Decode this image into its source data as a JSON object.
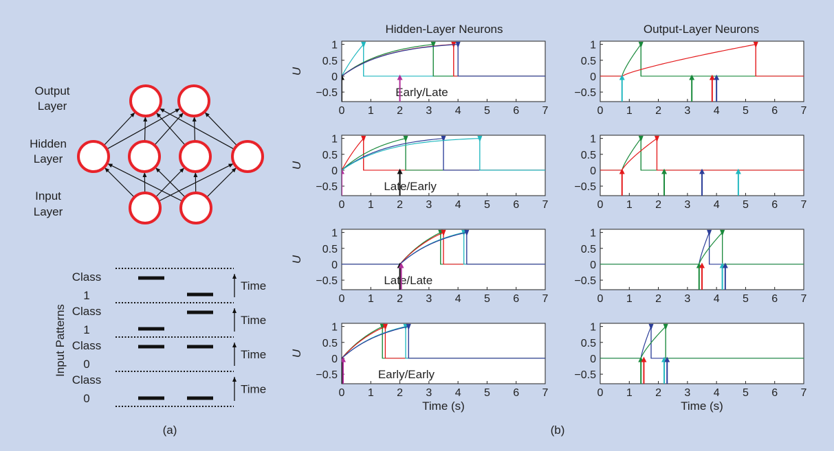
{
  "colors": {
    "background": "#cad6ec",
    "neuron_stroke": "#e8232a",
    "series": [
      "#e41a1c",
      "#1a8a3c",
      "#2c3e99",
      "#22b8c0",
      "#b0309a",
      "#111111"
    ]
  },
  "network": {
    "output_label": [
      "Output",
      "Layer"
    ],
    "hidden_label": [
      "Hidden",
      "Layer"
    ],
    "input_label": [
      "Input",
      "Layer"
    ]
  },
  "patterns": {
    "axis_label": "Input Patterns",
    "time_label": "Time",
    "rows": [
      {
        "class_label": "Class",
        "class_value": "1",
        "bars": [
          "left-early",
          "right-late"
        ]
      },
      {
        "class_label": "Class",
        "class_value": "1",
        "bars": [
          "right-early",
          "left-late"
        ]
      },
      {
        "class_label": "Class",
        "class_value": "0",
        "bars": [
          "left-early",
          "right-early"
        ]
      },
      {
        "class_label": "Class",
        "class_value": "0",
        "bars": [
          "left-late",
          "right-late"
        ]
      }
    ]
  },
  "panel_labels": {
    "a": "(a)",
    "b": "(b)"
  },
  "column_titles": {
    "hidden": "Hidden-Layer Neurons",
    "output": "Output-Layer Neurons"
  },
  "chart_data": {
    "type": "line",
    "x_label": "Time (s)",
    "y_label": "U",
    "xlim": [
      0,
      7
    ],
    "ylim": [
      -0.8,
      1.1
    ],
    "xticks": [
      0,
      1,
      2,
      3,
      4,
      5,
      6,
      7
    ],
    "yticks": [
      1,
      0.5,
      0,
      -0.5
    ],
    "ytick_labels": [
      "1",
      "0.5",
      "0",
      "−0.5"
    ],
    "rows": [
      {
        "label": "Early/Late",
        "hidden_spikes": [
          {
            "t": 0.75,
            "color": "#22b8c0"
          },
          {
            "t": 3.15,
            "color": "#1a8a3c"
          },
          {
            "t": 3.85,
            "color": "#e41a1c"
          },
          {
            "t": 4.0,
            "color": "#2c3e99"
          }
        ],
        "hidden_inputs": [
          {
            "t": 0,
            "color": "#111111"
          },
          {
            "t": 2,
            "color": "#b0309a"
          }
        ],
        "output_spikes": [
          {
            "t": 1.4,
            "color": "#1a8a3c"
          },
          {
            "t": 5.35,
            "color": "#e41a1c"
          }
        ],
        "output_inputs": [
          {
            "t": 0.75,
            "color": "#22b8c0"
          },
          {
            "t": 3.15,
            "color": "#1a8a3c"
          },
          {
            "t": 3.85,
            "color": "#e41a1c"
          },
          {
            "t": 4.0,
            "color": "#2c3e99"
          }
        ]
      },
      {
        "label": "Late/Early",
        "hidden_spikes": [
          {
            "t": 0.75,
            "color": "#e41a1c"
          },
          {
            "t": 2.2,
            "color": "#1a8a3c"
          },
          {
            "t": 3.5,
            "color": "#2c3e99"
          },
          {
            "t": 4.75,
            "color": "#22b8c0"
          }
        ],
        "hidden_inputs": [
          {
            "t": 0,
            "color": "#b0309a"
          },
          {
            "t": 2,
            "color": "#111111"
          }
        ],
        "output_spikes": [
          {
            "t": 1.4,
            "color": "#1a8a3c"
          },
          {
            "t": 1.95,
            "color": "#e41a1c"
          }
        ],
        "output_inputs": [
          {
            "t": 0.75,
            "color": "#e41a1c"
          },
          {
            "t": 2.2,
            "color": "#1a8a3c"
          },
          {
            "t": 3.5,
            "color": "#2c3e99"
          },
          {
            "t": 4.75,
            "color": "#22b8c0"
          }
        ]
      },
      {
        "label": "Late/Late",
        "hidden_spikes": [
          {
            "t": 3.4,
            "color": "#1a8a3c"
          },
          {
            "t": 3.5,
            "color": "#e41a1c"
          },
          {
            "t": 4.2,
            "color": "#22b8c0"
          },
          {
            "t": 4.3,
            "color": "#2c3e99"
          }
        ],
        "hidden_inputs": [
          {
            "t": 2,
            "color": "#111111"
          },
          {
            "t": 2,
            "color": "#b0309a"
          }
        ],
        "output_spikes": [
          {
            "t": 3.75,
            "color": "#2c3e99"
          },
          {
            "t": 4.2,
            "color": "#1a8a3c"
          }
        ],
        "output_inputs": [
          {
            "t": 3.4,
            "color": "#1a8a3c"
          },
          {
            "t": 3.5,
            "color": "#e41a1c"
          },
          {
            "t": 4.2,
            "color": "#22b8c0"
          },
          {
            "t": 4.3,
            "color": "#2c3e99"
          }
        ]
      },
      {
        "label": "Early/Early",
        "hidden_spikes": [
          {
            "t": 1.4,
            "color": "#1a8a3c"
          },
          {
            "t": 1.5,
            "color": "#e41a1c"
          },
          {
            "t": 2.2,
            "color": "#22b8c0"
          },
          {
            "t": 2.3,
            "color": "#2c3e99"
          }
        ],
        "hidden_inputs": [
          {
            "t": 0,
            "color": "#111111"
          },
          {
            "t": 0,
            "color": "#b0309a"
          }
        ],
        "output_spikes": [
          {
            "t": 1.75,
            "color": "#2c3e99"
          },
          {
            "t": 2.25,
            "color": "#1a8a3c"
          }
        ],
        "output_inputs": [
          {
            "t": 1.4,
            "color": "#1a8a3c"
          },
          {
            "t": 1.5,
            "color": "#e41a1c"
          },
          {
            "t": 2.2,
            "color": "#22b8c0"
          },
          {
            "t": 2.3,
            "color": "#2c3e99"
          }
        ]
      }
    ]
  }
}
